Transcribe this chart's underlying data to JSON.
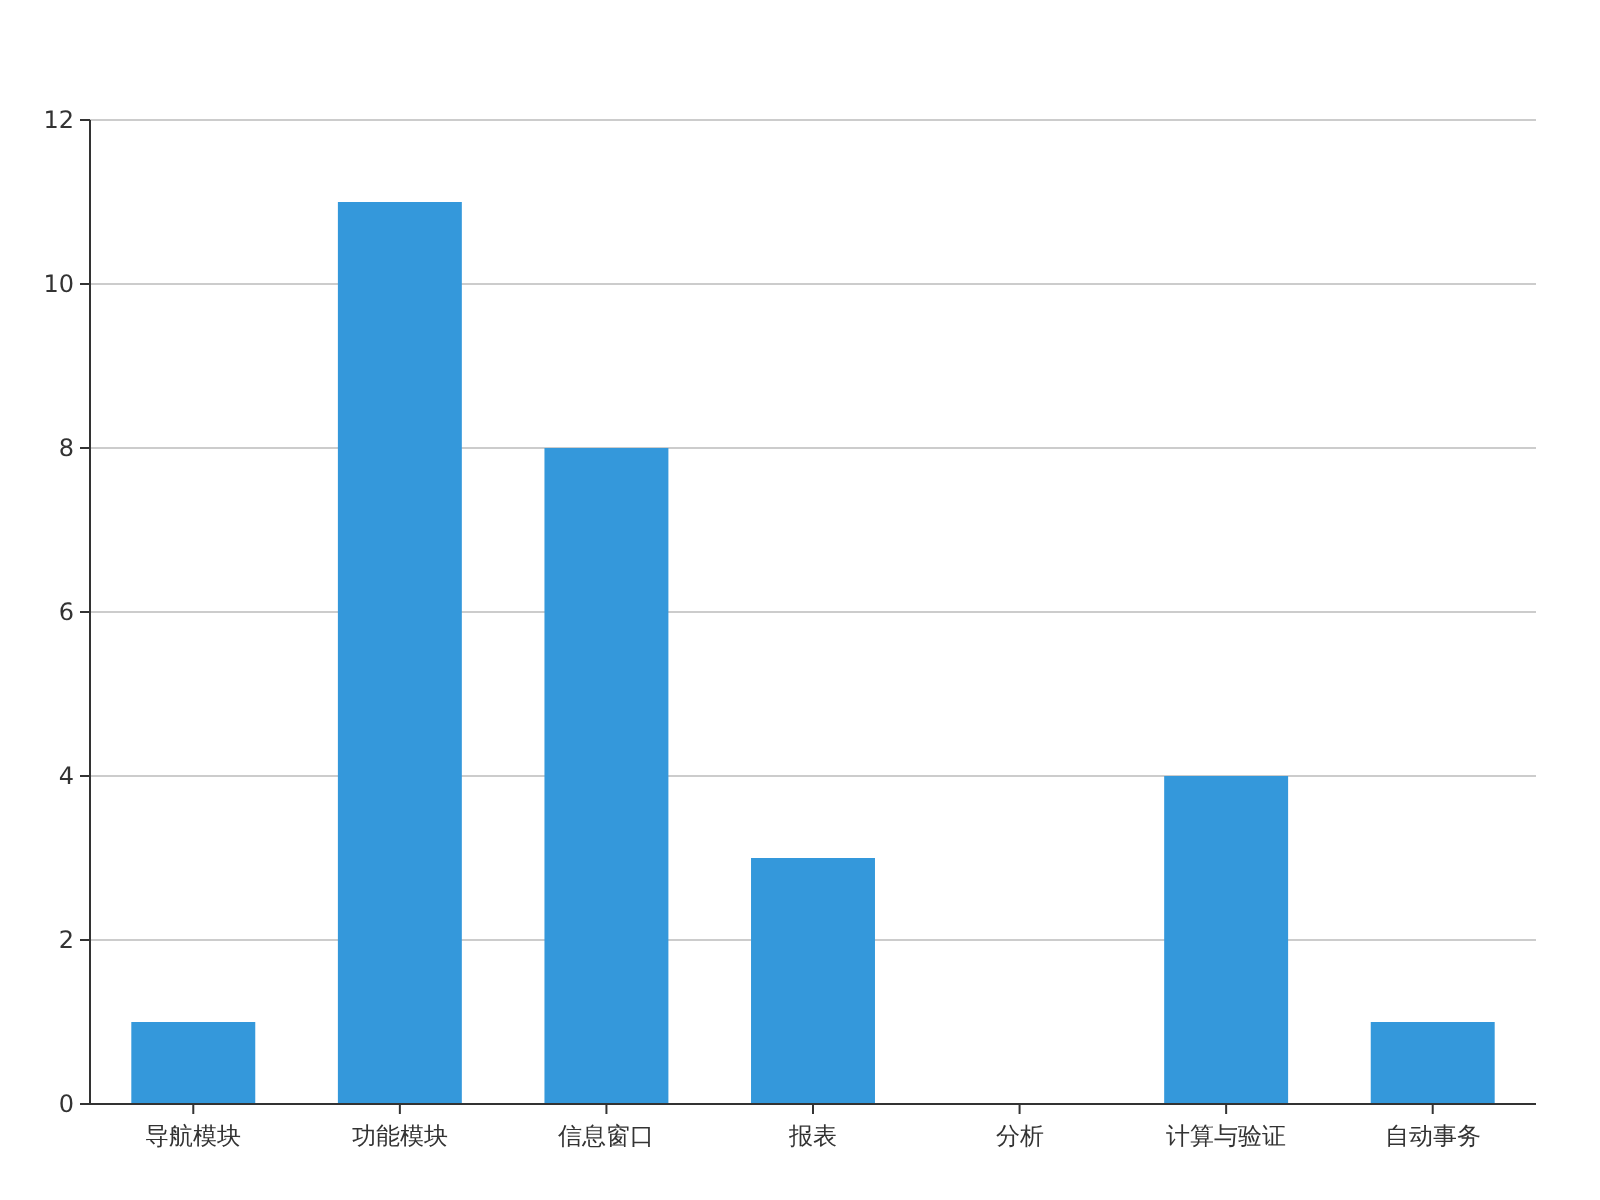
{
  "chart_data": {
    "type": "bar",
    "categories": [
      "导航模块",
      "功能模块",
      "信息窗口",
      "报表",
      "分析",
      "计算与验证",
      "自动事务"
    ],
    "values": [
      1,
      11,
      8,
      3,
      0,
      4,
      1
    ],
    "color": "#3498db",
    "ylim": [
      0,
      12
    ],
    "yticks": [
      0,
      2,
      4,
      6,
      8,
      10,
      12
    ],
    "grid": "y"
  }
}
